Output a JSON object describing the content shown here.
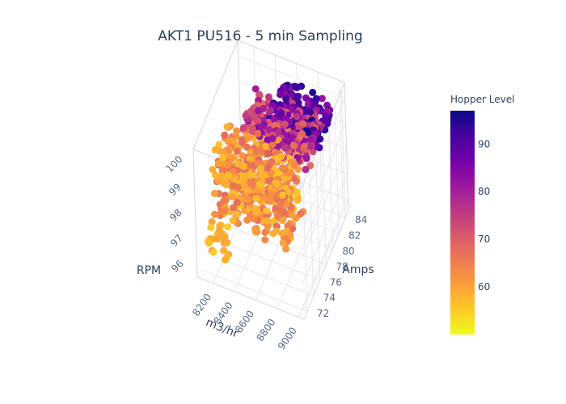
{
  "chart_data": {
    "type": "scatter3d",
    "title": "AKT1 PU516 - 5 min Sampling",
    "axes": {
      "x": {
        "label": "m3/hr",
        "range": [
          8050,
          9050
        ],
        "ticks": [
          "8200",
          "8400",
          "8600",
          "8800",
          "9000"
        ]
      },
      "y": {
        "label": "Amps",
        "range": [
          71,
          85
        ],
        "ticks": [
          "72",
          "74",
          "76",
          "78",
          "80",
          "82",
          "84"
        ]
      },
      "z": {
        "label": "RPM",
        "range": [
          95.6,
          100.6
        ],
        "ticks": [
          "96",
          "97",
          "98",
          "99",
          "100"
        ]
      }
    },
    "color": {
      "title": "Hopper Level",
      "range": [
        50,
        97
      ],
      "ticks": [
        "60",
        "70",
        "80",
        "90"
      ],
      "colorscale": [
        "#f0f921",
        "#fdca26",
        "#fb9f3a",
        "#ed7953",
        "#d8576b",
        "#bd3786",
        "#9c179e",
        "#7201a8",
        "#46039f",
        "#0d0887"
      ]
    },
    "grid": true,
    "marker_size": 9,
    "point_summary": "Dense cluster of several hundred points; flow ~8100-9000 m3/hr, amps ~72-84, RPM ~96-100.3; hopper level increases with amps and RPM."
  }
}
